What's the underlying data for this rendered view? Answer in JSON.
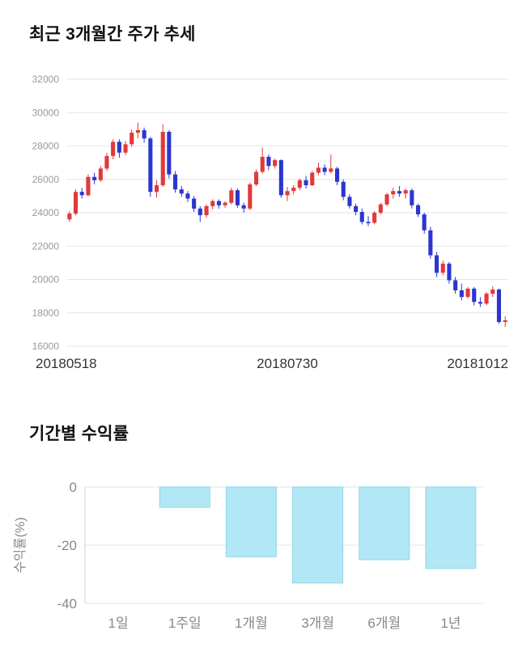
{
  "page": {
    "background_color": "#ffffff"
  },
  "chart_data": [
    {
      "type": "candlestick",
      "title": "최근 3개월간 주가 추세",
      "xlabel": "",
      "ylabel": "",
      "ylim": [
        16000,
        32000
      ],
      "y_ticks": [
        16000,
        18000,
        20000,
        22000,
        24000,
        26000,
        28000,
        30000,
        32000
      ],
      "x_tick_labels": [
        "20180518",
        "20180730",
        "20181012"
      ],
      "grid": true,
      "legend": "none",
      "up_color": "#e03a3a",
      "down_color": "#2b36d0",
      "grid_color": "#e6e6e6",
      "y_tick_color": "#999999",
      "x_tick_color": "#333333",
      "candles_ohlc": [
        [
          23600,
          24100,
          23450,
          23950
        ],
        [
          23950,
          25400,
          23850,
          25250
        ],
        [
          25250,
          25500,
          24850,
          25050
        ],
        [
          25050,
          26300,
          25000,
          26150
        ],
        [
          26150,
          26400,
          25700,
          25950
        ],
        [
          25950,
          26800,
          25850,
          26650
        ],
        [
          26650,
          27600,
          26500,
          27400
        ],
        [
          27400,
          28400,
          27200,
          28250
        ],
        [
          28250,
          28400,
          27300,
          27600
        ],
        [
          27600,
          28300,
          27450,
          28100
        ],
        [
          28100,
          29000,
          27950,
          28800
        ],
        [
          28800,
          29400,
          28450,
          28950
        ],
        [
          28950,
          29100,
          28200,
          28450
        ],
        [
          28450,
          28550,
          24950,
          25250
        ],
        [
          25250,
          25950,
          24900,
          25650
        ],
        [
          25650,
          29300,
          25550,
          28850
        ],
        [
          28850,
          28950,
          26050,
          26300
        ],
        [
          26300,
          26500,
          25200,
          25400
        ],
        [
          25400,
          25600,
          24950,
          25150
        ],
        [
          25150,
          25300,
          24650,
          24850
        ],
        [
          24850,
          25000,
          24050,
          24250
        ],
        [
          24250,
          24400,
          23450,
          23850
        ],
        [
          23850,
          24500,
          23700,
          24400
        ],
        [
          24400,
          24800,
          24200,
          24700
        ],
        [
          24700,
          24800,
          24250,
          24450
        ],
        [
          24450,
          24700,
          24300,
          24600
        ],
        [
          24600,
          25500,
          24500,
          25350
        ],
        [
          25350,
          25450,
          24300,
          24450
        ],
        [
          24450,
          24600,
          24000,
          24250
        ],
        [
          24250,
          25800,
          24150,
          25700
        ],
        [
          25700,
          26600,
          25600,
          26450
        ],
        [
          26450,
          27900,
          26350,
          27350
        ],
        [
          27350,
          27500,
          26550,
          26800
        ],
        [
          26800,
          27250,
          26650,
          27150
        ],
        [
          27150,
          27200,
          24900,
          25050
        ],
        [
          25050,
          25550,
          24700,
          25300
        ],
        [
          25300,
          25650,
          25100,
          25500
        ],
        [
          25500,
          26050,
          25350,
          25950
        ],
        [
          25950,
          26200,
          25450,
          25650
        ],
        [
          25650,
          26500,
          25600,
          26400
        ],
        [
          26400,
          27000,
          26250,
          26700
        ],
        [
          26700,
          26900,
          26250,
          26450
        ],
        [
          26450,
          27500,
          26350,
          26650
        ],
        [
          26650,
          26750,
          25650,
          25850
        ],
        [
          25850,
          26000,
          24750,
          24950
        ],
        [
          24950,
          25100,
          24250,
          24400
        ],
        [
          24400,
          24550,
          23850,
          24050
        ],
        [
          24050,
          24250,
          23300,
          23450
        ],
        [
          23450,
          23800,
          23200,
          23400
        ],
        [
          23400,
          24100,
          23300,
          24000
        ],
        [
          24000,
          24600,
          23900,
          24500
        ],
        [
          24500,
          25200,
          24400,
          25100
        ],
        [
          25100,
          25500,
          24850,
          25300
        ],
        [
          25300,
          25600,
          24950,
          25150
        ],
        [
          25150,
          25450,
          24850,
          25350
        ],
        [
          25350,
          25450,
          24250,
          24450
        ],
        [
          24450,
          24550,
          23750,
          23900
        ],
        [
          23900,
          24000,
          22750,
          22950
        ],
        [
          22950,
          23150,
          21250,
          21450
        ],
        [
          21450,
          21650,
          20150,
          20400
        ],
        [
          20400,
          21150,
          20250,
          20950
        ],
        [
          20950,
          21050,
          19750,
          19950
        ],
        [
          19950,
          20150,
          19150,
          19350
        ],
        [
          19350,
          19750,
          18750,
          18950
        ],
        [
          18950,
          19550,
          18850,
          19450
        ],
        [
          19450,
          19550,
          18450,
          18650
        ],
        [
          18650,
          18950,
          18350,
          18550
        ],
        [
          18550,
          19250,
          18450,
          19150
        ],
        [
          19150,
          19600,
          18950,
          19400
        ],
        [
          19400,
          19450,
          17350,
          17450
        ],
        [
          17450,
          17800,
          17150,
          17550
        ]
      ]
    },
    {
      "type": "bar",
      "title": "기간별 수익률",
      "xlabel": "",
      "ylabel": "수익률(%)",
      "ylim": [
        -40,
        0
      ],
      "y_ticks": [
        0,
        -20,
        -40
      ],
      "categories": [
        "1일",
        "1주일",
        "1개월",
        "3개월",
        "6개월",
        "1년"
      ],
      "values": [
        0,
        -7,
        -24,
        -33,
        -25,
        -28
      ],
      "grid": true,
      "legend": "none",
      "bar_color": "#b2e7f5",
      "bar_border_color": "#8fd8ec",
      "grid_color": "#e3e3e3",
      "axis_color": "#cccccc",
      "tick_color": "#888888"
    }
  ]
}
